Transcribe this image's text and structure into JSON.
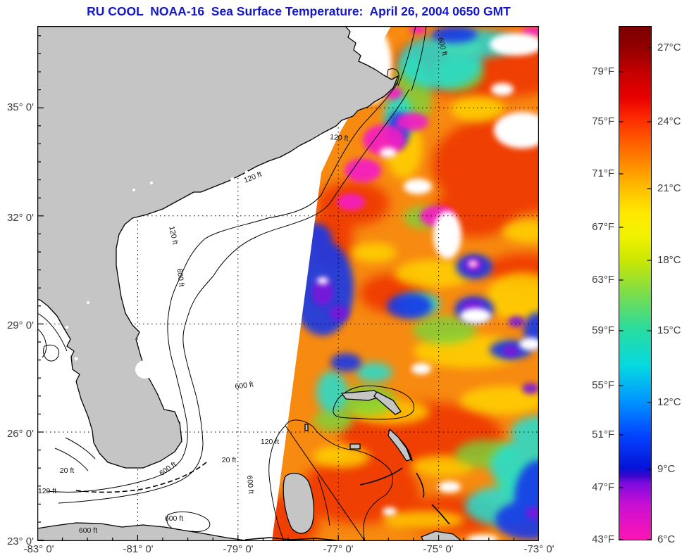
{
  "title": "RU COOL  NOAA-16  Sea Surface Temperature:  April 26, 2004 0650 GMT",
  "title_color": "#1316C9",
  "map": {
    "lat_ticks": [
      "35° 0'",
      "32° 0'",
      "29° 0'",
      "26° 0'",
      "23° 0'"
    ],
    "lon_ticks": [
      "-83° 0'",
      "-81° 0'",
      "-79° 0'",
      "-77° 0'",
      "-75° 0'",
      "-73° 0'"
    ],
    "contour_labels": {
      "ft20": "20 ft",
      "ft120": "120 ft",
      "ft600": "600 ft"
    },
    "land_color": "#C5C5C5",
    "nodata_color": "#FFFFFF"
  },
  "colorbar": {
    "f_labels": [
      "79°F",
      "75°F",
      "71°F",
      "67°F",
      "63°F",
      "59°F",
      "55°F",
      "51°F",
      "47°F",
      "43°F"
    ],
    "c_labels": [
      "27°C",
      "24°C",
      "21°C",
      "18°C",
      "15°C",
      "12°C",
      "9°C",
      "6°C"
    ],
    "range_celsius": [
      6,
      28
    ],
    "gradient": [
      {
        "o": "0%",
        "c": "#7A0000"
      },
      {
        "o": "4.2%",
        "c": "#930000"
      },
      {
        "o": "9%",
        "c": "#C40000"
      },
      {
        "o": "14%",
        "c": "#EA0000"
      },
      {
        "o": "18.2%",
        "c": "#FF2D00"
      },
      {
        "o": "25%",
        "c": "#FF7700"
      },
      {
        "o": "31.8%",
        "c": "#FFC100"
      },
      {
        "o": "36.5%",
        "c": "#FFE900"
      },
      {
        "o": "41%",
        "c": "#F0F200"
      },
      {
        "o": "45.5%",
        "c": "#CBE702"
      },
      {
        "o": "52%",
        "c": "#7CDD4B"
      },
      {
        "o": "59%",
        "c": "#28DC9F"
      },
      {
        "o": "66%",
        "c": "#06D9DF"
      },
      {
        "o": "72.5%",
        "c": "#0199FF"
      },
      {
        "o": "79.5%",
        "c": "#0345FF"
      },
      {
        "o": "86%",
        "c": "#0712D7"
      },
      {
        "o": "87.5%",
        "c": "#3A07CA"
      },
      {
        "o": "88.8%",
        "c": "#7A0BDF"
      },
      {
        "o": "93%",
        "c": "#C80FD4"
      },
      {
        "o": "100%",
        "c": "#FF15B1"
      }
    ]
  }
}
